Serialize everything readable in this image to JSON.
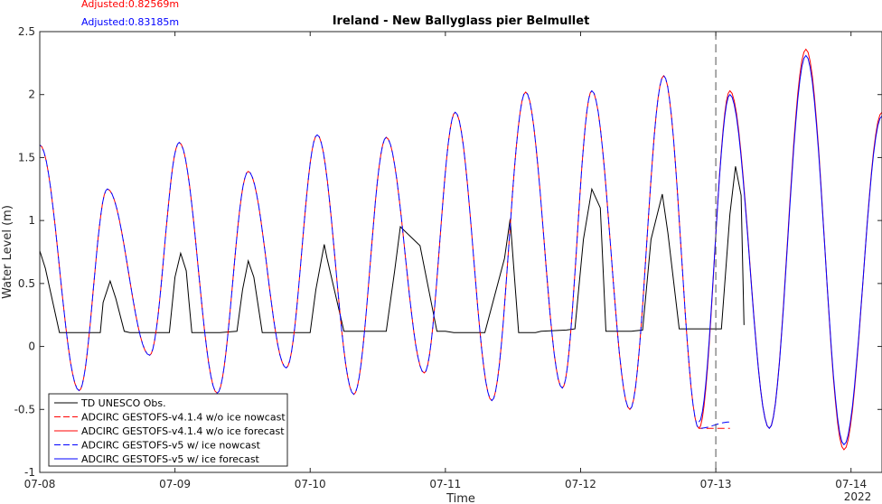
{
  "chart_data": {
    "type": "line",
    "title": "Ireland - New Ballyglass pier Belmullet",
    "xlabel": "Time",
    "ylabel": "Water Level (m)",
    "year_label": "2022",
    "ylim": [
      -1,
      2.5
    ],
    "yticks": [
      -1,
      -0.5,
      0,
      0.5,
      1,
      1.5,
      2,
      2.5
    ],
    "ytick_labels": [
      "-1",
      "-0.5",
      "0",
      "0.5",
      "1",
      "1.5",
      "2",
      "2.5"
    ],
    "xlim": [
      "2022-07-08 00:00",
      "2022-07-14 05:30"
    ],
    "xticks": [
      "2022-07-08",
      "2022-07-09",
      "2022-07-10",
      "2022-07-11",
      "2022-07-12",
      "2022-07-13",
      "2022-07-14"
    ],
    "xtick_labels": [
      "07-08",
      "07-09",
      "07-10",
      "07-11",
      "07-12",
      "07-13",
      "07-14"
    ],
    "forecast_start": "2022-07-13 00:00",
    "grid": false,
    "legend_position": "bottom-left",
    "annotations": [
      {
        "text": "Adjusted:0.82569m",
        "color": "#ff0000"
      },
      {
        "text": "Adjusted:0.83185m",
        "color": "#0000ff"
      }
    ],
    "tide_extrema": {
      "times": [
        "2022-07-08 00:00",
        "2022-07-08 07:00",
        "2022-07-08 12:00",
        "2022-07-08 19:30",
        "2022-07-09 00:45",
        "2022-07-09 07:30",
        "2022-07-09 13:00",
        "2022-07-09 19:45",
        "2022-07-10 01:15",
        "2022-07-10 07:45",
        "2022-07-10 13:30",
        "2022-07-10 20:15",
        "2022-07-11 01:45",
        "2022-07-11 08:15",
        "2022-07-11 14:15",
        "2022-07-11 20:45",
        "2022-07-12 02:00",
        "2022-07-12 08:45",
        "2022-07-12 14:45",
        "2022-07-12 21:00",
        "2022-07-13 02:30",
        "2022-07-13 09:30",
        "2022-07-13 16:00",
        "2022-07-13 22:45",
        "2022-07-14 05:30"
      ],
      "nowcast_values": [
        1.6,
        -0.35,
        1.25,
        -0.07,
        1.62,
        -0.37,
        1.39,
        -0.17,
        1.68,
        -0.38,
        1.66,
        -0.21,
        1.86,
        -0.43,
        2.02,
        -0.33,
        2.03,
        -0.5,
        2.15,
        -0.65
      ],
      "forecast_values_v414": [
        -0.65,
        2.03,
        -0.65,
        2.36,
        -0.82,
        1.86
      ],
      "forecast_values_v5": [
        -0.6,
        2.0,
        -0.65,
        2.31,
        -0.78,
        1.83
      ]
    },
    "series": [
      {
        "name": "TD UNESCO Obs.",
        "color": "#000000",
        "dash": "solid",
        "x": [
          "2022-07-08 00:00",
          "2022-07-08 01:00",
          "2022-07-08 03:30",
          "2022-07-08 04:30",
          "2022-07-08 05:00",
          "2022-07-08 05:30",
          "2022-07-08 06:00",
          "2022-07-08 07:00",
          "2022-07-08 08:30",
          "2022-07-08 10:45",
          "2022-07-08 11:15",
          "2022-07-08 12:30",
          "2022-07-08 13:30",
          "2022-07-08 15:00",
          "2022-07-08 16:00",
          "2022-07-08 16:30",
          "2022-07-08 17:00",
          "2022-07-08 17:30",
          "2022-07-08 19:00",
          "2022-07-08 19:30",
          "2022-07-08 20:30",
          "2022-07-08 23:00",
          "2022-07-09 00:00",
          "2022-07-09 01:00",
          "2022-07-09 02:00",
          "2022-07-09 02:30",
          "2022-07-09 03:00",
          "2022-07-09 06:00",
          "2022-07-09 08:00",
          "2022-07-09 11:00",
          "2022-07-09 12:00",
          "2022-07-09 13:00",
          "2022-07-09 14:00",
          "2022-07-09 15:30",
          "2022-07-09 18:30",
          "2022-07-09 21:15",
          "2022-07-09 22:00",
          "2022-07-10 00:00",
          "2022-07-10 01:00",
          "2022-07-10 02:30",
          "2022-07-10 03:00",
          "2022-07-10 06:00",
          "2022-07-10 09:00",
          "2022-07-10 10:30",
          "2022-07-10 12:00",
          "2022-07-10 13:30",
          "2022-07-10 15:00",
          "2022-07-10 16:00",
          "2022-07-10 19:30",
          "2022-07-10 22:30",
          "2022-07-11 00:00",
          "2022-07-11 01:30",
          "2022-07-11 03:00",
          "2022-07-11 04:00",
          "2022-07-11 05:00",
          "2022-07-11 07:00",
          "2022-07-11 10:30",
          "2022-07-11 11:30",
          "2022-07-11 13:00",
          "2022-07-11 14:30",
          "2022-07-11 16:00",
          "2022-07-11 17:00",
          "2022-07-11 21:30",
          "2022-07-11 23:00",
          "2022-07-12 00:30",
          "2022-07-12 02:00",
          "2022-07-12 03:30",
          "2022-07-12 04:30",
          "2022-07-12 05:00",
          "2022-07-12 09:00",
          "2022-07-12 11:00",
          "2022-07-12 12:30",
          "2022-07-12 14:30",
          "2022-07-12 15:30",
          "2022-07-12 17:30",
          "2022-07-12 18:00",
          "2022-07-13 00:00",
          "2022-07-13 01:00",
          "2022-07-13 02:30",
          "2022-07-13 03:30",
          "2022-07-13 04:30",
          "2022-07-13 05:00"
        ],
        "y": [
          0.76,
          0.62,
          0.11,
          0.11,
          0.11,
          0.11,
          0.11,
          0.11,
          0.11,
          0.11,
          0.35,
          0.52,
          0.38,
          0.12,
          0.11,
          0.11,
          0.11,
          0.11,
          0.11,
          0.11,
          0.11,
          0.11,
          0.55,
          0.74,
          0.6,
          0.35,
          0.11,
          0.11,
          0.11,
          0.12,
          0.45,
          0.68,
          0.55,
          0.11,
          0.11,
          0.11,
          0.11,
          0.11,
          0.45,
          0.81,
          0.7,
          0.12,
          0.12,
          0.12,
          0.12,
          0.12,
          0.6,
          0.95,
          0.8,
          0.12,
          0.12,
          0.11,
          0.11,
          0.11,
          0.11,
          0.11,
          0.7,
          1.01,
          0.11,
          0.11,
          0.11,
          0.12,
          0.13,
          0.14,
          0.85,
          1.25,
          1.1,
          0.12,
          0.12,
          0.12,
          0.13,
          0.85,
          1.21,
          0.9,
          0.14,
          0.14,
          0.14,
          0.14,
          1.05,
          1.43,
          1.2,
          0.17
        ]
      },
      {
        "name": "ADCIRC GESTOFS-v4.1.4 w/o ice nowcast",
        "color": "#ff0000",
        "dash": "dashed"
      },
      {
        "name": "ADCIRC GESTOFS-v4.1.4 w/o ice forecast",
        "color": "#ff0000",
        "dash": "solid"
      },
      {
        "name": "ADCIRC GESTOFS-v5 w/ ice nowcast",
        "color": "#0000ff",
        "dash": "dashed"
      },
      {
        "name": "ADCIRC GESTOFS-v5 w/ ice forecast",
        "color": "#0000ff",
        "dash": "solid"
      }
    ]
  }
}
